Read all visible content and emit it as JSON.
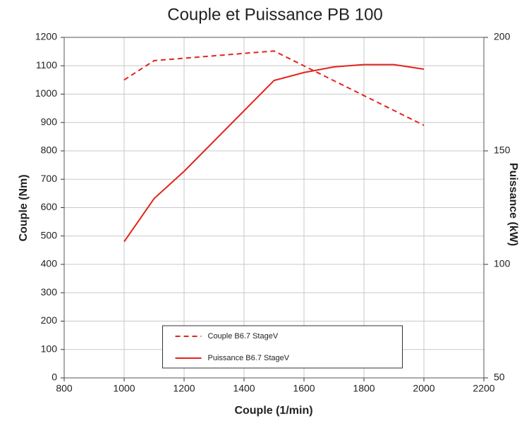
{
  "chart_data": {
    "type": "line",
    "title": "Couple et Puissance PB 100",
    "xlabel": "Couple (1/min)",
    "ylabel": "Couple (Nm)",
    "y2label": "Puissance (kW)",
    "xlim": [
      800,
      2200
    ],
    "xticks": [
      800,
      1000,
      1200,
      1400,
      1600,
      1800,
      2000,
      2200
    ],
    "ylim": [
      0,
      1200
    ],
    "yticks": [
      0,
      100,
      200,
      300,
      400,
      500,
      600,
      700,
      800,
      900,
      1000,
      1100,
      1200
    ],
    "y2lim": [
      50,
      200
    ],
    "y2ticks": [
      50,
      100,
      150,
      200
    ],
    "grid": true,
    "legend": "lower center",
    "series": [
      {
        "name": "Couple B6.7 StageV",
        "color": "#e3241b",
        "line_style": "dashed",
        "x": [
          1000,
          1100,
          1500,
          2000
        ],
        "values": [
          1050,
          1118,
          1152,
          890
        ]
      },
      {
        "name": "Puissance B6.7 StageV",
        "color": "#e3241b",
        "line_style": "solid",
        "axis": "y2",
        "x": [
          1000,
          1100,
          1200,
          1500,
          1600,
          1700,
          1800,
          1900,
          2000
        ],
        "values": [
          110,
          129,
          141,
          181,
          184.5,
          187,
          188,
          188,
          186
        ]
      }
    ]
  }
}
